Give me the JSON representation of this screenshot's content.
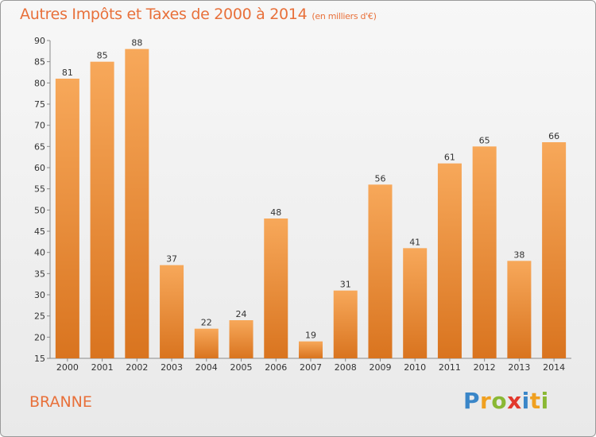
{
  "header": {
    "title": "Autres Impôts et Taxes de 2000 à 2014",
    "subtitle": "(en milliers d'€)"
  },
  "footer": {
    "commune": "BRANNE",
    "logo_text": "Proxiti",
    "logo_letters": [
      {
        "ch": "P",
        "color": "#3a86c8"
      },
      {
        "ch": "r",
        "color": "#f0a020"
      },
      {
        "ch": "o",
        "color": "#8ab834"
      },
      {
        "ch": "x",
        "color": "#e2382c"
      },
      {
        "ch": "i",
        "color": "#3a86c8"
      },
      {
        "ch": "t",
        "color": "#f0a020"
      },
      {
        "ch": "i",
        "color": "#8ab834"
      }
    ]
  },
  "colors": {
    "accent": "#e8703a",
    "bar_light": "#f7a85a",
    "bar_dark": "#d9741f"
  },
  "chart_data": {
    "type": "bar",
    "title": "Autres Impôts et Taxes de 2000 à 2014",
    "subtitle": "(en milliers d'€)",
    "categories": [
      "2000",
      "2001",
      "2002",
      "2003",
      "2004",
      "2005",
      "2006",
      "2007",
      "2008",
      "2009",
      "2010",
      "2011",
      "2012",
      "2013",
      "2014"
    ],
    "values": [
      81,
      85,
      88,
      37,
      22,
      24,
      48,
      19,
      31,
      56,
      41,
      61,
      65,
      38,
      66
    ],
    "ylim": [
      15,
      90
    ],
    "yticks": [
      15,
      20,
      25,
      30,
      35,
      40,
      45,
      50,
      55,
      60,
      65,
      70,
      75,
      80,
      85,
      90
    ],
    "grid": false,
    "data_labels": true
  }
}
